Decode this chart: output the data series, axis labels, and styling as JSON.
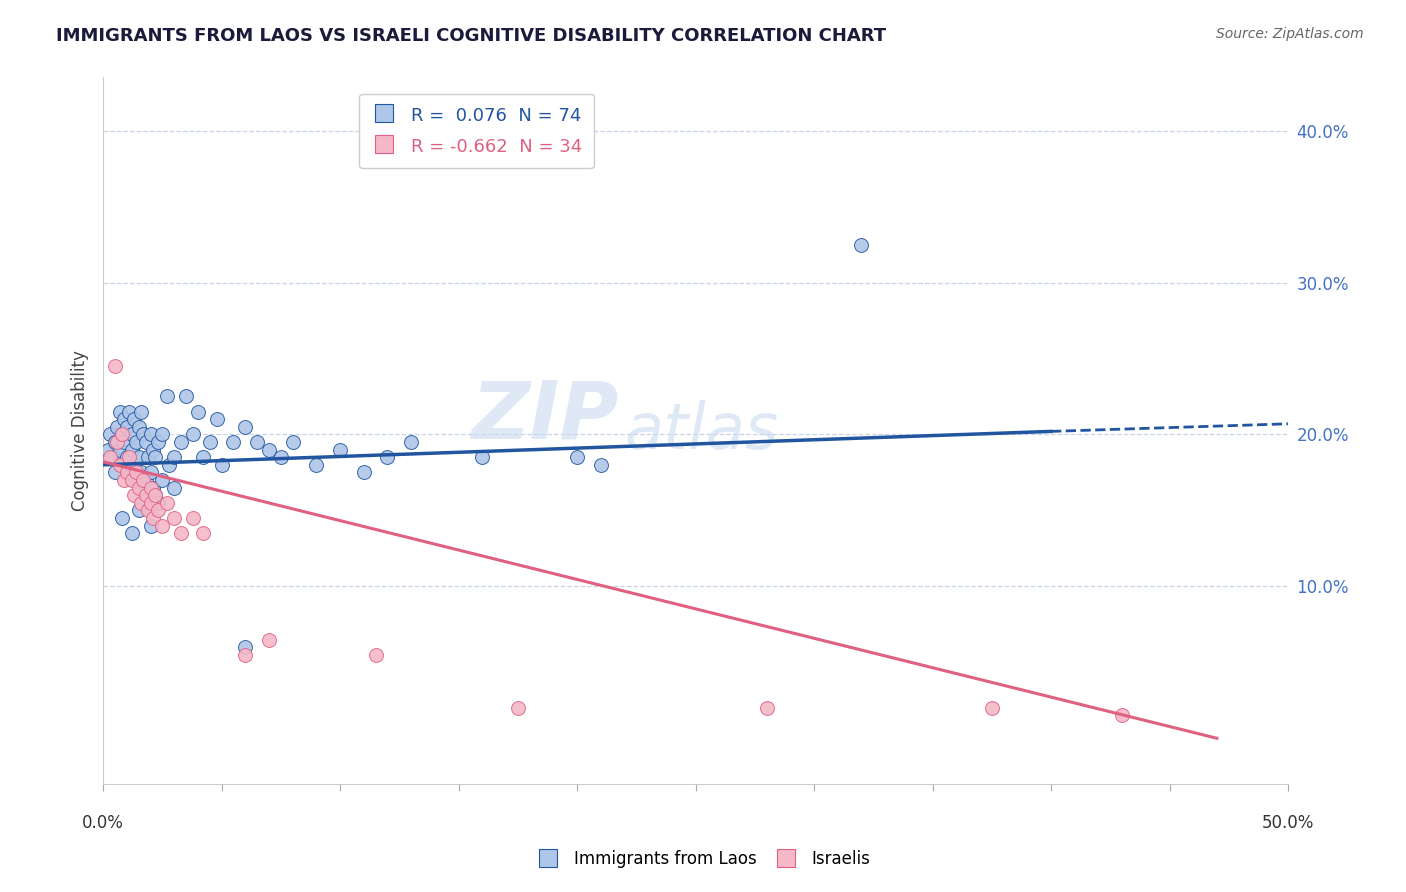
{
  "title": "IMMIGRANTS FROM LAOS VS ISRAELI COGNITIVE DISABILITY CORRELATION CHART",
  "source": "Source: ZipAtlas.com",
  "ylabel": "Cognitive Disability",
  "ytick_labels": [
    "10.0%",
    "20.0%",
    "30.0%",
    "40.0%"
  ],
  "ytick_values": [
    0.1,
    0.2,
    0.3,
    0.4
  ],
  "xlim": [
    0.0,
    0.5
  ],
  "ylim": [
    -0.03,
    0.435
  ],
  "blue_R": 0.076,
  "blue_N": 74,
  "pink_R": -0.662,
  "pink_N": 34,
  "blue_color": "#aec6e8",
  "pink_color": "#f5b8c8",
  "blue_line_color": "#2255a0",
  "pink_line_color": "#e06080",
  "watermark_zip": "ZIP",
  "watermark_atlas": "atlas",
  "background_color": "#ffffff",
  "grid_color": "#c8d4e8",
  "legend_label_blue": "Immigrants from Laos",
  "legend_label_pink": "Israelis",
  "blue_dots": [
    [
      0.002,
      0.19
    ],
    [
      0.003,
      0.2
    ],
    [
      0.004,
      0.185
    ],
    [
      0.005,
      0.195
    ],
    [
      0.005,
      0.175
    ],
    [
      0.006,
      0.205
    ],
    [
      0.007,
      0.215
    ],
    [
      0.007,
      0.19
    ],
    [
      0.008,
      0.2
    ],
    [
      0.008,
      0.18
    ],
    [
      0.009,
      0.21
    ],
    [
      0.009,
      0.195
    ],
    [
      0.01,
      0.205
    ],
    [
      0.01,
      0.185
    ],
    [
      0.011,
      0.215
    ],
    [
      0.011,
      0.175
    ],
    [
      0.012,
      0.2
    ],
    [
      0.012,
      0.19
    ],
    [
      0.013,
      0.21
    ],
    [
      0.013,
      0.18
    ],
    [
      0.014,
      0.195
    ],
    [
      0.014,
      0.17
    ],
    [
      0.015,
      0.205
    ],
    [
      0.015,
      0.185
    ],
    [
      0.016,
      0.215
    ],
    [
      0.016,
      0.175
    ],
    [
      0.017,
      0.2
    ],
    [
      0.017,
      0.165
    ],
    [
      0.018,
      0.195
    ],
    [
      0.018,
      0.17
    ],
    [
      0.019,
      0.185
    ],
    [
      0.019,
      0.16
    ],
    [
      0.02,
      0.2
    ],
    [
      0.02,
      0.175
    ],
    [
      0.021,
      0.19
    ],
    [
      0.021,
      0.165
    ],
    [
      0.022,
      0.185
    ],
    [
      0.022,
      0.16
    ],
    [
      0.023,
      0.195
    ],
    [
      0.023,
      0.155
    ],
    [
      0.025,
      0.2
    ],
    [
      0.025,
      0.17
    ],
    [
      0.027,
      0.225
    ],
    [
      0.028,
      0.18
    ],
    [
      0.03,
      0.185
    ],
    [
      0.03,
      0.165
    ],
    [
      0.033,
      0.195
    ],
    [
      0.035,
      0.225
    ],
    [
      0.038,
      0.2
    ],
    [
      0.04,
      0.215
    ],
    [
      0.042,
      0.185
    ],
    [
      0.045,
      0.195
    ],
    [
      0.048,
      0.21
    ],
    [
      0.05,
      0.18
    ],
    [
      0.055,
      0.195
    ],
    [
      0.06,
      0.205
    ],
    [
      0.065,
      0.195
    ],
    [
      0.07,
      0.19
    ],
    [
      0.075,
      0.185
    ],
    [
      0.08,
      0.195
    ],
    [
      0.09,
      0.18
    ],
    [
      0.1,
      0.19
    ],
    [
      0.11,
      0.175
    ],
    [
      0.12,
      0.185
    ],
    [
      0.06,
      0.06
    ],
    [
      0.13,
      0.195
    ],
    [
      0.16,
      0.185
    ],
    [
      0.2,
      0.185
    ],
    [
      0.21,
      0.18
    ],
    [
      0.32,
      0.325
    ],
    [
      0.008,
      0.145
    ],
    [
      0.012,
      0.135
    ],
    [
      0.015,
      0.15
    ],
    [
      0.02,
      0.14
    ]
  ],
  "pink_dots": [
    [
      0.003,
      0.185
    ],
    [
      0.005,
      0.245
    ],
    [
      0.006,
      0.195
    ],
    [
      0.007,
      0.18
    ],
    [
      0.008,
      0.2
    ],
    [
      0.009,
      0.17
    ],
    [
      0.01,
      0.175
    ],
    [
      0.011,
      0.185
    ],
    [
      0.012,
      0.17
    ],
    [
      0.013,
      0.16
    ],
    [
      0.014,
      0.175
    ],
    [
      0.015,
      0.165
    ],
    [
      0.016,
      0.155
    ],
    [
      0.017,
      0.17
    ],
    [
      0.018,
      0.16
    ],
    [
      0.019,
      0.15
    ],
    [
      0.02,
      0.165
    ],
    [
      0.02,
      0.155
    ],
    [
      0.021,
      0.145
    ],
    [
      0.022,
      0.16
    ],
    [
      0.023,
      0.15
    ],
    [
      0.025,
      0.14
    ],
    [
      0.027,
      0.155
    ],
    [
      0.03,
      0.145
    ],
    [
      0.033,
      0.135
    ],
    [
      0.038,
      0.145
    ],
    [
      0.042,
      0.135
    ],
    [
      0.06,
      0.055
    ],
    [
      0.07,
      0.065
    ],
    [
      0.115,
      0.055
    ],
    [
      0.175,
      0.02
    ],
    [
      0.28,
      0.02
    ],
    [
      0.375,
      0.02
    ],
    [
      0.43,
      0.015
    ]
  ],
  "blue_line": {
    "x0": 0.0,
    "y0": 0.18,
    "x1": 0.4,
    "y1": 0.202,
    "x1_dash": 0.5,
    "y1_dash": 0.207
  },
  "pink_line": {
    "x0": 0.0,
    "y0": 0.182,
    "x1": 0.47,
    "y1": 0.0
  }
}
